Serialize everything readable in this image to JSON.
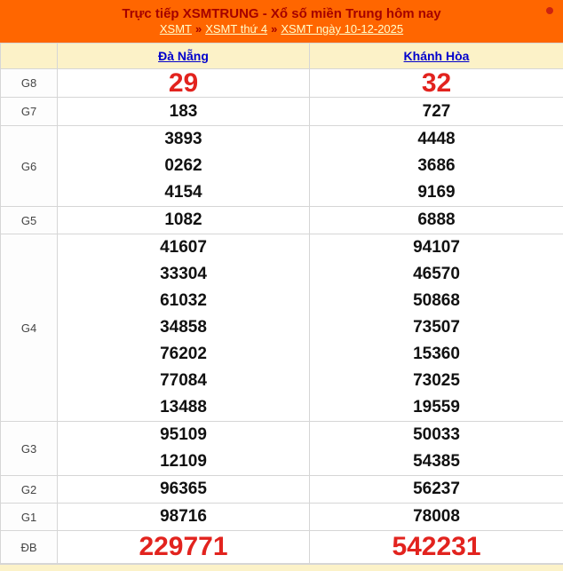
{
  "header": {
    "title": "Trực tiếp XSMTRUNG - Xổ số miền Trung hôm nay",
    "separator": "»",
    "breadcrumb": [
      {
        "label": "XSMT"
      },
      {
        "label": "XSMT thứ 4"
      },
      {
        "label": "XSMT ngày 10-12-2025"
      }
    ]
  },
  "table": {
    "columns": [
      "Đà Nẵng",
      "Khánh Hòa"
    ],
    "rows": [
      {
        "prize": "G8",
        "highlight": true,
        "values": [
          [
            "29"
          ],
          [
            "32"
          ]
        ]
      },
      {
        "prize": "G7",
        "highlight": false,
        "values": [
          [
            "183"
          ],
          [
            "727"
          ]
        ]
      },
      {
        "prize": "G6",
        "highlight": false,
        "values": [
          [
            "3893",
            "0262",
            "4154"
          ],
          [
            "4448",
            "3686",
            "9169"
          ]
        ]
      },
      {
        "prize": "G5",
        "highlight": false,
        "values": [
          [
            "1082"
          ],
          [
            "6888"
          ]
        ]
      },
      {
        "prize": "G4",
        "highlight": false,
        "values": [
          [
            "41607",
            "33304",
            "61032",
            "34858",
            "76202",
            "77084",
            "13488"
          ],
          [
            "94107",
            "46570",
            "50868",
            "73507",
            "15360",
            "73025",
            "19559"
          ]
        ]
      },
      {
        "prize": "G3",
        "highlight": false,
        "values": [
          [
            "95109",
            "12109"
          ],
          [
            "50033",
            "54385"
          ]
        ]
      },
      {
        "prize": "G2",
        "highlight": false,
        "values": [
          [
            "96365"
          ],
          [
            "56237"
          ]
        ]
      },
      {
        "prize": "G1",
        "highlight": false,
        "values": [
          [
            "98716"
          ],
          [
            "78008"
          ]
        ]
      },
      {
        "prize": "ĐB",
        "highlight": true,
        "values": [
          [
            "229771"
          ],
          [
            "542231"
          ]
        ]
      }
    ]
  },
  "colors": {
    "header_bg": "#FF6600",
    "title_text": "#A40000",
    "breadcrumb_link": "#FFFFCC",
    "table_header_bg": "#FCF2C8",
    "column_link": "#0000CC",
    "highlight_value": "#E2231E",
    "value_text": "#111111",
    "border": "#D6D6D6"
  }
}
